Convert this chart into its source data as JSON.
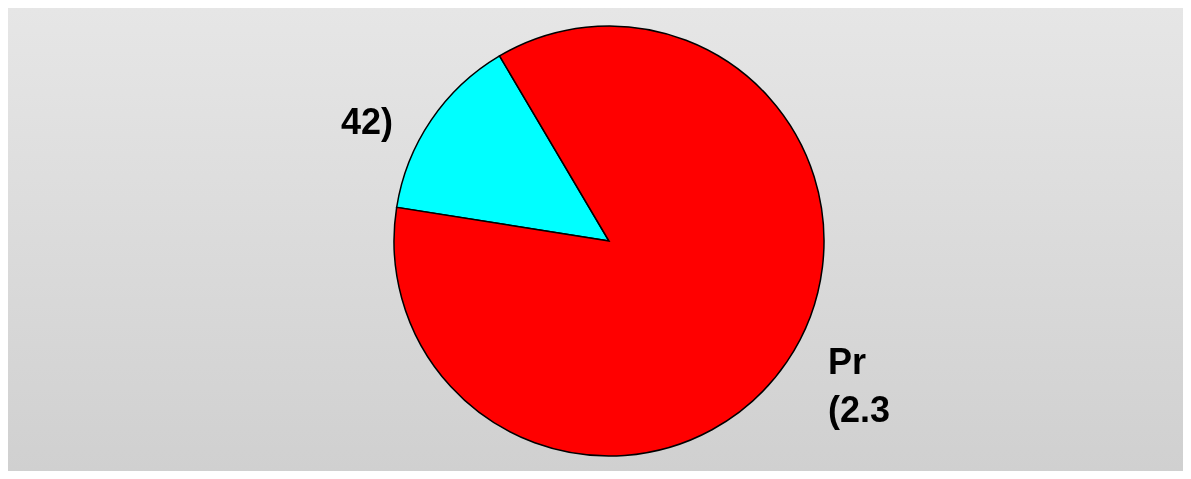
{
  "chart_data": {
    "type": "pie",
    "categories": [
      "42)",
      "Pr\n(2.3"
    ],
    "values": [
      14,
      86
    ],
    "colors": [
      "#00ffff",
      "#ff0000"
    ]
  }
}
